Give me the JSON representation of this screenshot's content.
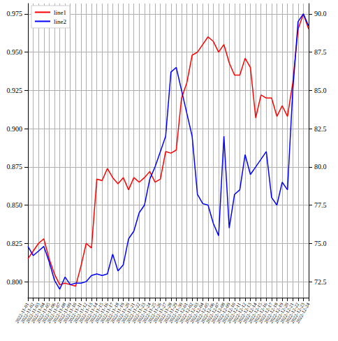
{
  "chart_data": {
    "type": "line",
    "x": [
      "2022-11-01",
      "2022-11-02",
      "2022-11-03",
      "2022-11-04",
      "2022-11-05",
      "2022-11-06",
      "2022-11-07",
      "2022-11-08",
      "2022-11-09",
      "2022-11-10",
      "2022-11-11",
      "2022-11-12",
      "2022-11-13",
      "2022-11-14",
      "2022-11-15",
      "2022-11-16",
      "2022-11-17",
      "2022-11-18",
      "2022-11-19",
      "2022-11-20",
      "2022-11-21",
      "2022-11-22",
      "2022-11-23",
      "2022-11-24",
      "2022-11-25",
      "2022-11-26",
      "2022-11-27",
      "2022-11-28",
      "2022-11-29",
      "2022-11-30",
      "2022-12-01",
      "2022-12-02",
      "2022-12-03",
      "2022-12-04",
      "2022-12-05",
      "2022-12-06",
      "2022-12-07",
      "2022-12-08",
      "2022-12-09",
      "2022-12-10",
      "2022-12-11",
      "2022-12-12",
      "2022-12-13",
      "2022-12-14",
      "2022-12-15",
      "2022-12-16",
      "2022-12-17",
      "2022-12-18",
      "2022-12-19",
      "2022-12-20",
      "2022-12-21",
      "2022-12-22",
      "2022-12-23",
      "2022-12-24"
    ],
    "series": [
      {
        "name": "line1",
        "color": "#ff0000",
        "values": [
          0.815,
          0.82,
          0.825,
          0.828,
          0.815,
          0.805,
          0.798,
          0.799,
          0.798,
          0.797,
          0.81,
          0.825,
          0.822,
          0.867,
          0.866,
          0.874,
          0.868,
          0.864,
          0.868,
          0.86,
          0.868,
          0.865,
          0.868,
          0.872,
          0.865,
          0.867,
          0.885,
          0.884,
          0.886,
          0.92,
          0.93,
          0.948,
          0.95,
          0.955,
          0.96,
          0.957,
          0.95,
          0.955,
          0.943,
          0.935,
          0.935,
          0.946,
          0.94,
          0.907,
          0.922,
          0.92,
          0.92,
          0.908,
          0.915,
          0.908,
          0.93,
          0.965,
          0.975,
          0.965
        ]
      },
      {
        "name": "line2",
        "color": "#0000ff",
        "axis": "y2",
        "values": [
          74.8,
          74.2,
          74.5,
          74.8,
          73.8,
          72.6,
          72.0,
          72.8,
          72.3,
          72.4,
          72.4,
          72.5,
          72.9,
          73.0,
          72.9,
          73.0,
          74.3,
          73.2,
          73.6,
          75.3,
          75.8,
          77.0,
          77.5,
          79.2,
          80.0,
          81.0,
          82.0,
          86.2,
          86.5,
          85.0,
          83.5,
          82.0,
          78.2,
          77.6,
          77.5,
          76.3,
          75.5,
          82.0,
          76.0,
          78.2,
          78.5,
          80.8,
          79.5,
          80.0,
          80.5,
          81.0,
          78.0,
          77.5,
          79.0,
          78.5,
          85.0,
          89.5,
          90.0,
          89.2
        ]
      }
    ],
    "ylim": [
      0.7895,
      0.9818
    ],
    "yticks": [
      {
        "value": 0.8,
        "label": "0.800"
      },
      {
        "value": 0.825,
        "label": "0.825"
      },
      {
        "value": 0.85,
        "label": "0.850"
      },
      {
        "value": 0.875,
        "label": "0.875"
      },
      {
        "value": 0.9,
        "label": "0.900"
      },
      {
        "value": 0.925,
        "label": "0.925"
      },
      {
        "value": 0.95,
        "label": "0.950"
      },
      {
        "value": 0.975,
        "label": "0.975"
      }
    ],
    "y2lim": [
      71.45,
      90.68
    ],
    "y2ticks": [
      72.5,
      {
        "value": 75,
        "label": "75.0"
      },
      77.5,
      {
        "value": 80,
        "label": "80.0"
      },
      82.5,
      {
        "value": 85,
        "label": "85.0"
      },
      87.5,
      {
        "value": 90,
        "label": "90.0"
      }
    ],
    "grid": true,
    "legend": "upper left"
  }
}
